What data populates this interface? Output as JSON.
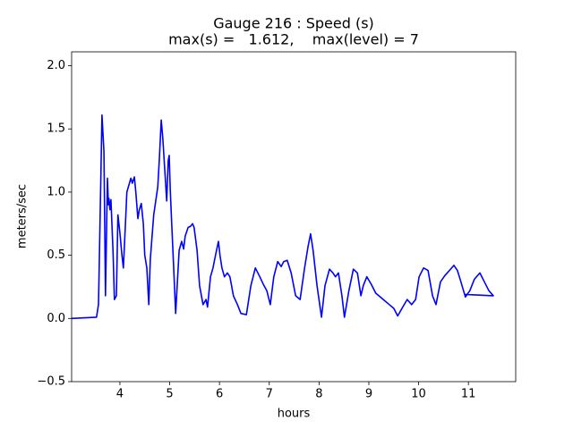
{
  "chart_data": {
    "type": "line",
    "title": "Gauge 216 : Speed (s)",
    "subtitle": "max(s) =   1.612,    max(level) = 7",
    "x_label": "hours",
    "y_label": "meters/sec",
    "color": "#0000ff",
    "x": [
      3.03,
      3.53,
      3.57,
      3.6,
      3.64,
      3.68,
      3.71,
      3.75,
      3.77,
      3.78,
      3.8,
      3.82,
      3.86,
      3.89,
      3.93,
      3.96,
      4.0,
      4.04,
      4.07,
      4.11,
      4.14,
      4.22,
      4.25,
      4.29,
      4.32,
      4.36,
      4.39,
      4.43,
      4.47,
      4.5,
      4.54,
      4.58,
      4.61,
      4.68,
      4.76,
      4.79,
      4.83,
      4.86,
      4.9,
      4.94,
      4.97,
      4.99,
      5.01,
      5.04,
      5.08,
      5.12,
      5.15,
      5.19,
      5.24,
      5.28,
      5.31,
      5.37,
      5.42,
      5.46,
      5.49,
      5.55,
      5.6,
      5.67,
      5.73,
      5.76,
      5.82,
      5.87,
      5.92,
      5.98,
      6.01,
      6.05,
      6.1,
      6.16,
      6.21,
      6.28,
      6.36,
      6.43,
      6.54,
      6.63,
      6.72,
      6.81,
      6.88,
      6.95,
      7.02,
      7.09,
      7.17,
      7.24,
      7.29,
      7.36,
      7.44,
      7.53,
      7.62,
      7.71,
      7.78,
      7.83,
      7.88,
      7.96,
      8.05,
      8.12,
      8.21,
      8.28,
      8.33,
      8.39,
      8.46,
      8.51,
      8.6,
      8.69,
      8.77,
      8.84,
      8.89,
      8.96,
      9.05,
      9.14,
      9.29,
      9.41,
      9.5,
      9.58,
      9.68,
      9.77,
      9.86,
      9.94,
      10.01,
      10.1,
      10.19,
      10.28,
      10.35,
      10.44,
      10.53,
      10.62,
      10.71,
      10.78,
      10.85,
      10.94,
      11.03,
      11.12,
      11.23,
      11.32,
      11.41,
      11.5,
      10.94
    ],
    "values": [
      0,
      0.01,
      0.11,
      0.75,
      1.61,
      1.32,
      0.18,
      1.11,
      0.9,
      0.95,
      0.86,
      0.94,
      0.54,
      0.15,
      0.18,
      0.82,
      0.68,
      0.5,
      0.4,
      0.75,
      1.0,
      1.11,
      1.07,
      1.12,
      1.0,
      0.79,
      0.86,
      0.91,
      0.75,
      0.5,
      0.4,
      0.11,
      0.47,
      0.82,
      1.04,
      1.25,
      1.57,
      1.43,
      1.18,
      0.93,
      1.25,
      1.29,
      1.03,
      0.75,
      0.4,
      0.04,
      0.26,
      0.54,
      0.61,
      0.55,
      0.65,
      0.72,
      0.73,
      0.75,
      0.72,
      0.54,
      0.26,
      0.11,
      0.15,
      0.09,
      0.33,
      0.4,
      0.5,
      0.61,
      0.5,
      0.4,
      0.33,
      0.36,
      0.33,
      0.18,
      0.11,
      0.04,
      0.03,
      0.26,
      0.4,
      0.33,
      0.27,
      0.22,
      0.11,
      0.33,
      0.45,
      0.41,
      0.45,
      0.46,
      0.36,
      0.18,
      0.15,
      0.4,
      0.57,
      0.67,
      0.54,
      0.26,
      0.01,
      0.26,
      0.39,
      0.36,
      0.33,
      0.36,
      0.18,
      0.01,
      0.22,
      0.39,
      0.36,
      0.18,
      0.26,
      0.33,
      0.27,
      0.2,
      0.15,
      0.11,
      0.08,
      0.02,
      0.09,
      0.15,
      0.11,
      0.15,
      0.33,
      0.4,
      0.38,
      0.18,
      0.11,
      0.29,
      0.34,
      0.38,
      0.42,
      0.38,
      0.29,
      0.17,
      0.22,
      0.31,
      0.36,
      0.29,
      0.22,
      0.18,
      0.19
    ],
    "xlim": [
      3.03,
      11.95
    ],
    "ylim": [
      -0.5,
      2.11
    ],
    "xticks": [
      4,
      5,
      6,
      7,
      8,
      9,
      10,
      11
    ],
    "yticks": [
      {
        "value": -0.5,
        "label": "−0.5"
      },
      {
        "value": 0,
        "label": "0.0"
      },
      {
        "value": 0.5,
        "label": "0.5"
      },
      {
        "value": 1,
        "label": "1.0"
      },
      {
        "value": 1.5,
        "label": "1.5"
      },
      {
        "value": 2,
        "label": "2.0"
      }
    ]
  }
}
